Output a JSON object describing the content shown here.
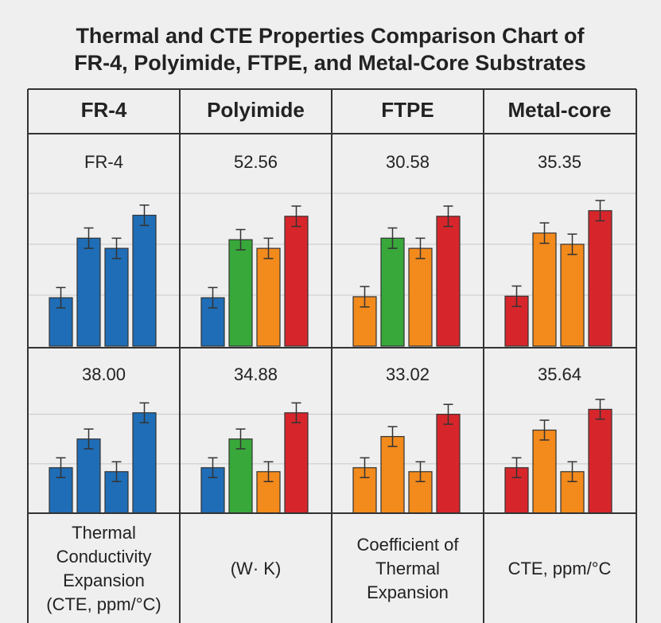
{
  "title": [
    "Thermal and CTE Properties Comparison Chart of",
    "FR-4, Polyimide, FTPE, and Metal-Core Substrates"
  ],
  "columns": [
    "FR-4",
    "Polyimide",
    "FTPE",
    "Metal-core"
  ],
  "footer": [
    [
      "Thermal",
      "Conductivity",
      "Expansion",
      "(CTE, ppm/°C)"
    ],
    [
      "(W· K)"
    ],
    [
      "Coefficient of",
      "Thermal",
      "Expansion"
    ],
    [
      "CTE, ppm/°C"
    ]
  ],
  "chart_data": [
    {
      "type": "bar",
      "label": "FR-4",
      "values": [
        0.95,
        2.12,
        1.92,
        2.57
      ],
      "errors": [
        0.2,
        0.2,
        0.2,
        0.2
      ],
      "colors": [
        "#1f6db6",
        "#1f6db6",
        "#1f6db6",
        "#1f6db6"
      ],
      "ylim": [
        0,
        3
      ],
      "yticks": [
        1,
        2,
        3
      ],
      "grid": true
    },
    {
      "type": "bar",
      "label": "52.56",
      "values": [
        0.95,
        2.09,
        1.92,
        2.55
      ],
      "errors": [
        0.2,
        0.2,
        0.2,
        0.2
      ],
      "colors": [
        "#1f6db6",
        "#38a83a",
        "#f28a1c",
        "#d7262b"
      ],
      "ylim": [
        0,
        3
      ],
      "yticks": [
        1,
        2,
        3
      ],
      "grid": true
    },
    {
      "type": "bar",
      "label": "30.58",
      "values": [
        0.97,
        2.12,
        1.92,
        2.55
      ],
      "errors": [
        0.2,
        0.2,
        0.2,
        0.2
      ],
      "colors": [
        "#f28a1c",
        "#38a83a",
        "#f28a1c",
        "#d7262b"
      ],
      "ylim": [
        0,
        3
      ],
      "yticks": [
        1,
        2,
        3
      ],
      "grid": true
    },
    {
      "type": "bar",
      "label": "35.35",
      "values": [
        0.98,
        2.22,
        2.0,
        2.66
      ],
      "errors": [
        0.2,
        0.2,
        0.2,
        0.2
      ],
      "colors": [
        "#d7262b",
        "#f28a1c",
        "#f28a1c",
        "#d7262b"
      ],
      "ylim": [
        0,
        3
      ],
      "yticks": [
        1,
        2,
        3
      ],
      "grid": true
    },
    {
      "type": "bar",
      "label": "38.00",
      "values": [
        0.92,
        1.5,
        0.84,
        2.03
      ],
      "errors": [
        0.2,
        0.2,
        0.2,
        0.2
      ],
      "colors": [
        "#1f6db6",
        "#1f6db6",
        "#1f6db6",
        "#1f6db6"
      ],
      "ylim": [
        0,
        2.3
      ],
      "yticks": [
        1,
        2
      ],
      "grid": true
    },
    {
      "type": "bar",
      "label": "34.88",
      "values": [
        0.92,
        1.5,
        0.84,
        2.03
      ],
      "errors": [
        0.2,
        0.2,
        0.2,
        0.2
      ],
      "colors": [
        "#1f6db6",
        "#38a83a",
        "#f28a1c",
        "#d7262b"
      ],
      "ylim": [
        0,
        2.3
      ],
      "yticks": [
        1,
        2
      ],
      "grid": true
    },
    {
      "type": "bar",
      "label": "33.02",
      "values": [
        0.92,
        1.55,
        0.84,
        2.0
      ],
      "errors": [
        0.2,
        0.2,
        0.2,
        0.2
      ],
      "colors": [
        "#f28a1c",
        "#f28a1c",
        "#f28a1c",
        "#d7262b"
      ],
      "ylim": [
        0,
        2.3
      ],
      "yticks": [
        1,
        2
      ],
      "grid": true
    },
    {
      "type": "bar",
      "label": "35.64",
      "values": [
        0.92,
        1.68,
        0.84,
        2.1
      ],
      "errors": [
        0.2,
        0.2,
        0.2,
        0.2
      ],
      "colors": [
        "#d7262b",
        "#f28a1c",
        "#f28a1c",
        "#d7262b"
      ],
      "ylim": [
        0,
        2.3
      ],
      "yticks": [
        1,
        2
      ],
      "grid": true
    }
  ]
}
